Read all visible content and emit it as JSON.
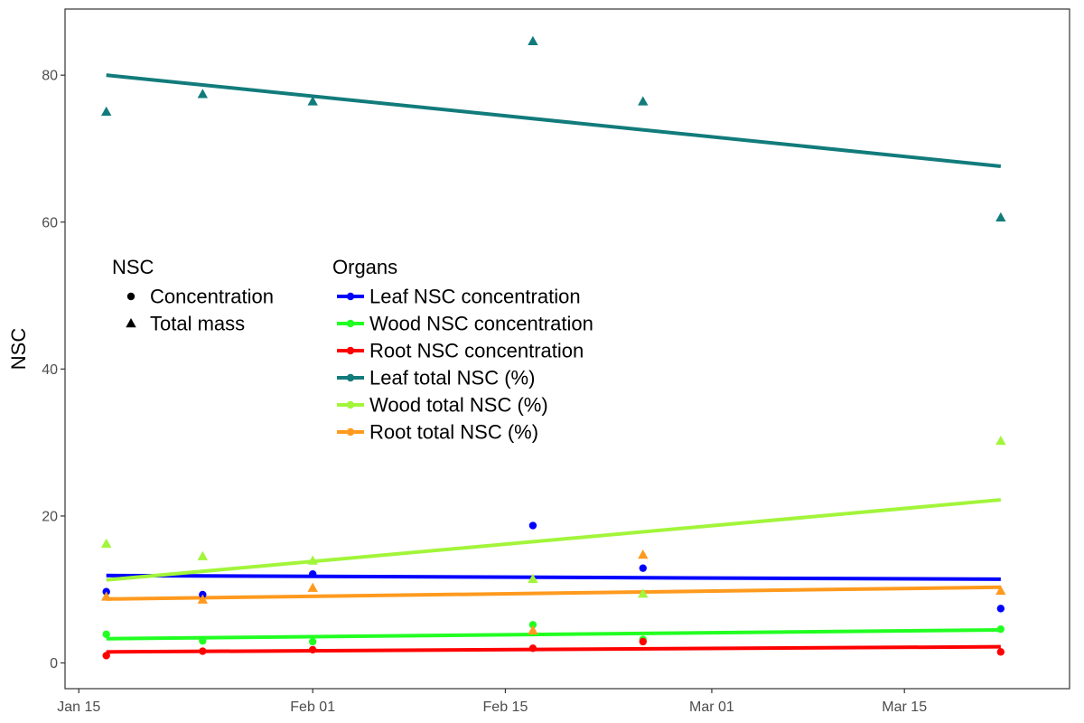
{
  "chart_data": {
    "type": "scatter",
    "title": "",
    "xlabel": "",
    "ylabel": "NSC",
    "x_axis": {
      "type": "date",
      "range": [
        "2024-01-14",
        "2024-03-27"
      ],
      "ticks": [
        {
          "date": "2024-01-15",
          "label": "Jan 15"
        },
        {
          "date": "2024-02-01",
          "label": "Feb 01"
        },
        {
          "date": "2024-02-15",
          "label": "Feb 15"
        },
        {
          "date": "2024-03-01",
          "label": "Mar 01"
        },
        {
          "date": "2024-03-15",
          "label": "Mar 15"
        }
      ]
    },
    "y_axis": {
      "range": [
        -3.5,
        89
      ],
      "ticks": [
        0,
        20,
        40,
        60,
        80
      ]
    },
    "grid": false,
    "legend": {
      "placement": "inside-left",
      "shape_title": "NSC",
      "shapes": [
        {
          "label": "Concentration",
          "shape": "circle"
        },
        {
          "label": "Total mass",
          "shape": "triangle"
        }
      ],
      "color_title": "Organs"
    },
    "series": [
      {
        "name": "Leaf NSC concentration",
        "color": "#0000ff",
        "shape": "circle",
        "points": [
          [
            "2024-01-17",
            9.7
          ],
          [
            "2024-01-24",
            9.3
          ],
          [
            "2024-02-01",
            12.1
          ],
          [
            "2024-02-17",
            18.7
          ],
          [
            "2024-02-25",
            12.9
          ],
          [
            "2024-03-22",
            7.4
          ]
        ],
        "fit": {
          "start": [
            "2024-01-17",
            11.9
          ],
          "end": [
            "2024-03-22",
            11.4
          ]
        }
      },
      {
        "name": "Wood NSC concentration",
        "color": "#22ff22",
        "shape": "circle",
        "points": [
          [
            "2024-01-17",
            3.9
          ],
          [
            "2024-01-24",
            3.0
          ],
          [
            "2024-02-01",
            2.9
          ],
          [
            "2024-02-17",
            5.2
          ],
          [
            "2024-02-25",
            3.2
          ],
          [
            "2024-03-22",
            4.6
          ]
        ],
        "fit": {
          "start": [
            "2024-01-17",
            3.3
          ],
          "end": [
            "2024-03-22",
            4.5
          ]
        }
      },
      {
        "name": "Root NSC concentration",
        "color": "#ff0000",
        "shape": "circle",
        "points": [
          [
            "2024-01-17",
            1.0
          ],
          [
            "2024-01-24",
            1.6
          ],
          [
            "2024-02-01",
            1.8
          ],
          [
            "2024-02-17",
            2.0
          ],
          [
            "2024-02-25",
            2.9
          ],
          [
            "2024-03-22",
            1.5
          ]
        ],
        "fit": {
          "start": [
            "2024-01-17",
            1.5
          ],
          "end": [
            "2024-03-22",
            2.2
          ]
        }
      },
      {
        "name": "Leaf total NSC (%)",
        "color": "#127b7b",
        "shape": "triangle",
        "points": [
          [
            "2024-01-17",
            75.0
          ],
          [
            "2024-01-24",
            77.4
          ],
          [
            "2024-02-01",
            76.4
          ],
          [
            "2024-02-17",
            84.6
          ],
          [
            "2024-02-25",
            76.4
          ],
          [
            "2024-03-22",
            60.6
          ]
        ],
        "fit": {
          "start": [
            "2024-01-17",
            80.0
          ],
          "end": [
            "2024-03-22",
            67.6
          ]
        }
      },
      {
        "name": "Wood total NSC (%)",
        "color": "#a2f53a",
        "shape": "triangle",
        "points": [
          [
            "2024-01-17",
            16.2
          ],
          [
            "2024-01-24",
            14.5
          ],
          [
            "2024-02-01",
            13.9
          ],
          [
            "2024-02-17",
            11.4
          ],
          [
            "2024-02-25",
            9.4
          ],
          [
            "2024-03-22",
            30.2
          ]
        ],
        "fit": {
          "start": [
            "2024-01-17",
            11.3
          ],
          "end": [
            "2024-03-22",
            22.2
          ]
        }
      },
      {
        "name": "Root total NSC (%)",
        "color": "#ff9a1e",
        "shape": "triangle",
        "points": [
          [
            "2024-01-17",
            9.0
          ],
          [
            "2024-01-24",
            8.6
          ],
          [
            "2024-02-01",
            10.2
          ],
          [
            "2024-02-17",
            4.4
          ],
          [
            "2024-02-25",
            14.7
          ],
          [
            "2024-03-22",
            9.8
          ]
        ],
        "fit": {
          "start": [
            "2024-01-17",
            8.7
          ],
          "end": [
            "2024-03-22",
            10.3
          ]
        }
      }
    ]
  }
}
